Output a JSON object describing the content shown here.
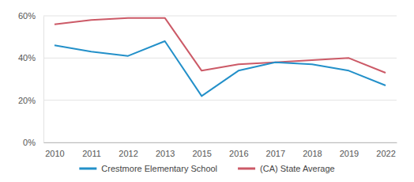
{
  "chart_data": {
    "type": "line",
    "categories": [
      "2010",
      "2011",
      "2012",
      "2013",
      "2015",
      "2016",
      "2017",
      "2018",
      "2019",
      "2022"
    ],
    "series": [
      {
        "name": "Crestmore Elementary School",
        "color": "#2390c9",
        "values": [
          46,
          43,
          41,
          48,
          22,
          34,
          38,
          37,
          34,
          27
        ]
      },
      {
        "name": "(CA) State Average",
        "color": "#cc5a67",
        "values": [
          56,
          58,
          59,
          59,
          34,
          37,
          38,
          39,
          40,
          33
        ]
      }
    ],
    "ylim": [
      0,
      60
    ],
    "yticks": [
      {
        "value": 0,
        "label": "0%"
      },
      {
        "value": 20,
        "label": "20%"
      },
      {
        "value": 40,
        "label": "40%"
      },
      {
        "value": 60,
        "label": "60%"
      }
    ],
    "grid": true,
    "legend": "bottom"
  }
}
